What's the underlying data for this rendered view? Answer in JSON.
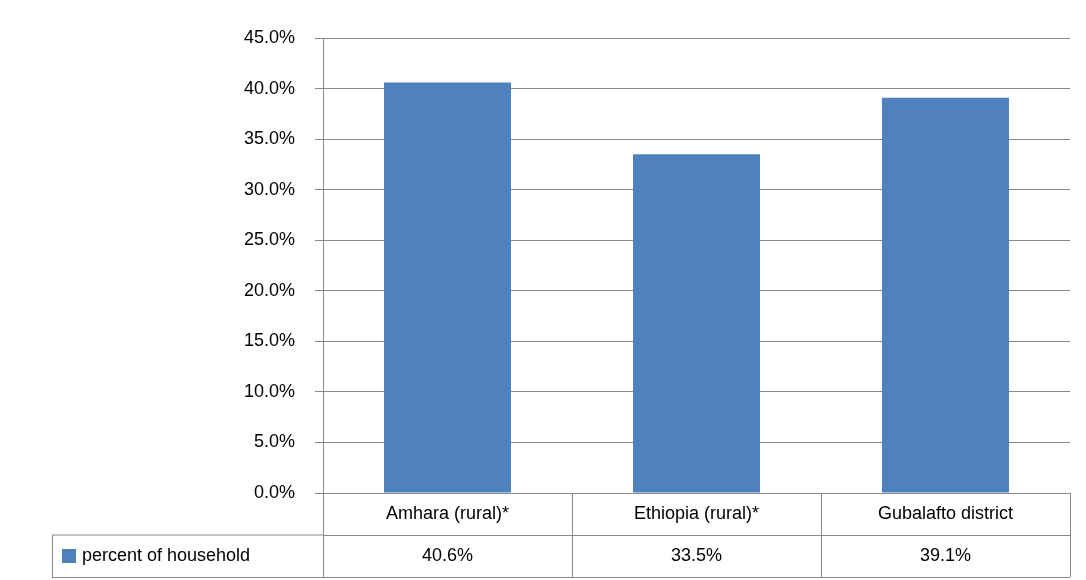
{
  "chart_data": {
    "type": "bar",
    "categories": [
      "Amhara (rural)*",
      "Ethiopia (rural)*",
      "Gubalafto district"
    ],
    "series": [
      {
        "name": "percent of household",
        "color": "#4f81bd",
        "values": [
          40.6,
          33.5,
          39.1
        ],
        "value_labels": [
          "40.6%",
          "33.5%",
          "39.1%"
        ]
      }
    ],
    "ylim": [
      0,
      45
    ],
    "yticks": [
      {
        "value": 0,
        "label": "0.0%"
      },
      {
        "value": 5,
        "label": "5.0%"
      },
      {
        "value": 10,
        "label": "10.0%"
      },
      {
        "value": 15,
        "label": "15.0%"
      },
      {
        "value": 20,
        "label": "20.0%"
      },
      {
        "value": 25,
        "label": "25.0%"
      },
      {
        "value": 30,
        "label": "30.0%"
      },
      {
        "value": 35,
        "label": "35.0%"
      },
      {
        "value": 40,
        "label": "40.0%"
      },
      {
        "value": 45,
        "label": "45.0%"
      }
    ],
    "grid": "y",
    "legend": "bottom left"
  }
}
